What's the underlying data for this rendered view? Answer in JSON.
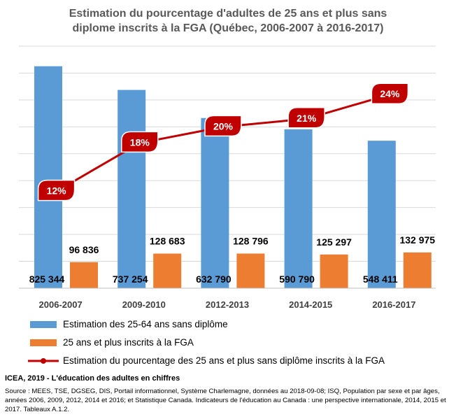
{
  "chart_data": {
    "type": "bar",
    "title_lines": [
      "Estimation du pourcentage d'adultes de 25 ans et plus sans",
      "diplome inscrits à la FGA (Québec, 2006-2007 à 2016-2017)"
    ],
    "categories": [
      "2006-2007",
      "2009-2010",
      "2012-2013",
      "2014-2015",
      "2016-2017"
    ],
    "series": [
      {
        "name": "Estimation des 25-64 ans sans diplôme",
        "type": "bar",
        "color": "#5B9BD5",
        "values": [
          825344,
          737254,
          632790,
          590790,
          548411
        ],
        "labels": [
          "825 344",
          "737 254",
          "632 790",
          "590 790",
          "548 411"
        ]
      },
      {
        "name": "25 ans et plus inscrits à la FGA",
        "type": "bar",
        "color": "#ED7D31",
        "values": [
          96836,
          128683,
          128796,
          125297,
          132975
        ],
        "labels": [
          "96 836",
          "128 683",
          "128 796",
          "125 297",
          "132 975"
        ]
      },
      {
        "name": "Estimation du pourcentage des 25 ans et plus sans diplôme inscrits à la FGA",
        "type": "line",
        "color": "#C00000",
        "values": [
          12,
          18,
          20,
          21,
          24
        ],
        "labels": [
          "12%",
          "18%",
          "20%",
          "21%",
          "24%"
        ]
      }
    ],
    "ylim": [
      0,
      900000
    ],
    "line_ylim": [
      0,
      30
    ],
    "grid": true,
    "legend_position": "bottom"
  },
  "footer": {
    "credit": "ICEA, 2019 - L'éducation des adultes en chiffres",
    "source": "Source : MEES, TSE, DGSEG, DIS, Portail informationnel, Système Charlemagne, données au 2018-09-08; ISQ, Population par sexe et par âges, années 2006, 2009, 2012, 2014 et 2016; et Statistique Canada. Indicateurs de l'éducation au Canada : une perspective internationale, 2014, 2015 et 2017. Tableaux A.1.2."
  }
}
